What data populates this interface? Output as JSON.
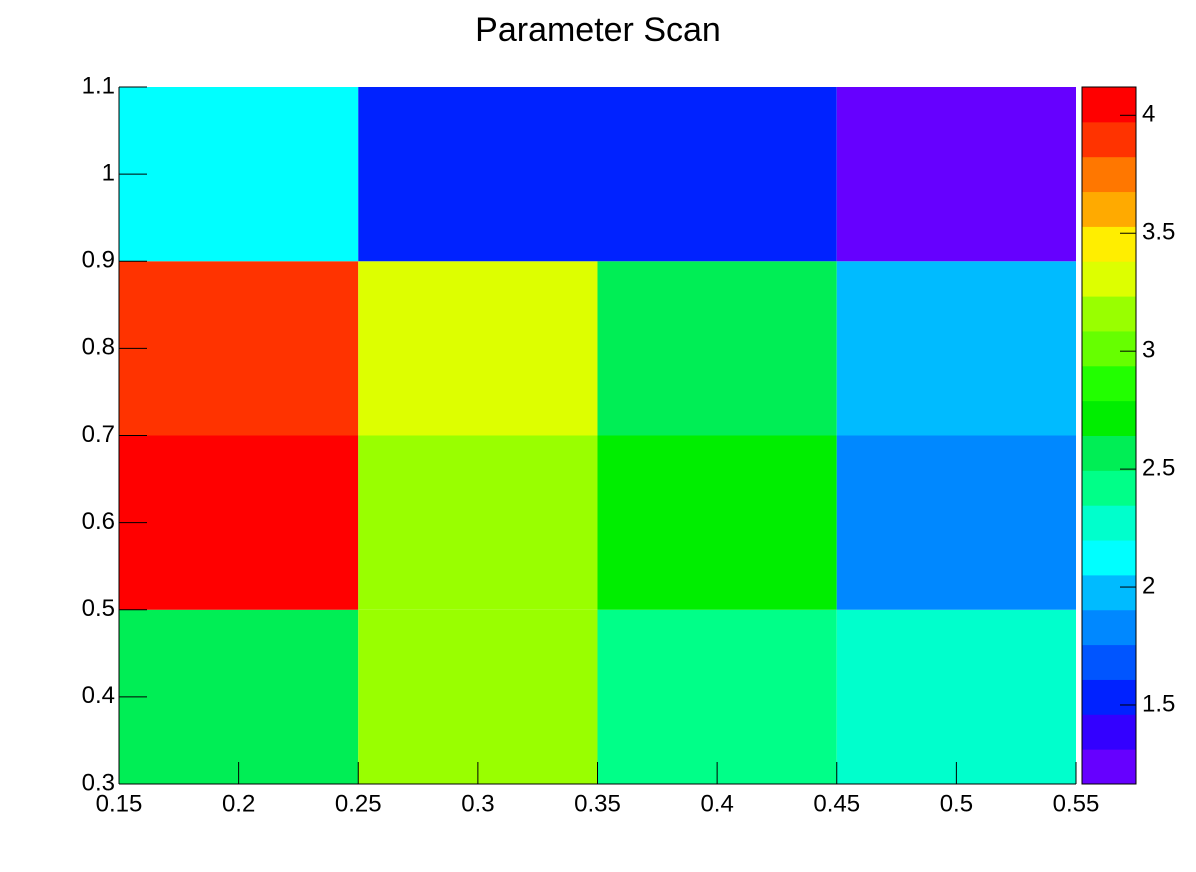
{
  "chart_data": {
    "type": "heatmap",
    "title": "Parameter Scan",
    "xbins": [
      0.15,
      0.25,
      0.35,
      0.45,
      0.55
    ],
    "ybins": [
      0.3,
      0.5,
      0.7,
      0.9,
      1.1
    ],
    "z": [
      [
        2.57,
        3.16,
        2.42,
        2.27
      ],
      [
        4.12,
        3.16,
        2.72,
        1.83
      ],
      [
        3.9,
        3.31,
        2.57,
        1.98
      ],
      [
        2.12,
        1.53,
        1.53,
        1.165
      ]
    ],
    "xlim": [
      0.15,
      0.55
    ],
    "xticks": [
      0.15,
      0.2,
      0.25,
      0.3,
      0.35,
      0.4,
      0.45,
      0.5,
      0.55
    ],
    "ylim": [
      0.3,
      1.1
    ],
    "yticks": [
      0.3,
      0.4,
      0.5,
      0.6,
      0.7,
      0.8,
      0.9,
      1,
      1.1
    ],
    "zlim": [
      1.165,
      4.12
    ],
    "zticks": [
      1.5,
      2,
      2.5,
      3,
      3.5,
      4
    ],
    "palette": [
      "#6600ff",
      "#3300ff",
      "#0022ff",
      "#0055ff",
      "#0088ff",
      "#00bbff",
      "#00ffff",
      "#00ffcc",
      "#00ff88",
      "#00ee55",
      "#00ee00",
      "#22ff00",
      "#66ff00",
      "#99ff00",
      "#ddff00",
      "#ffee00",
      "#ffaa00",
      "#ff7700",
      "#ff3300",
      "#ff0000"
    ]
  }
}
